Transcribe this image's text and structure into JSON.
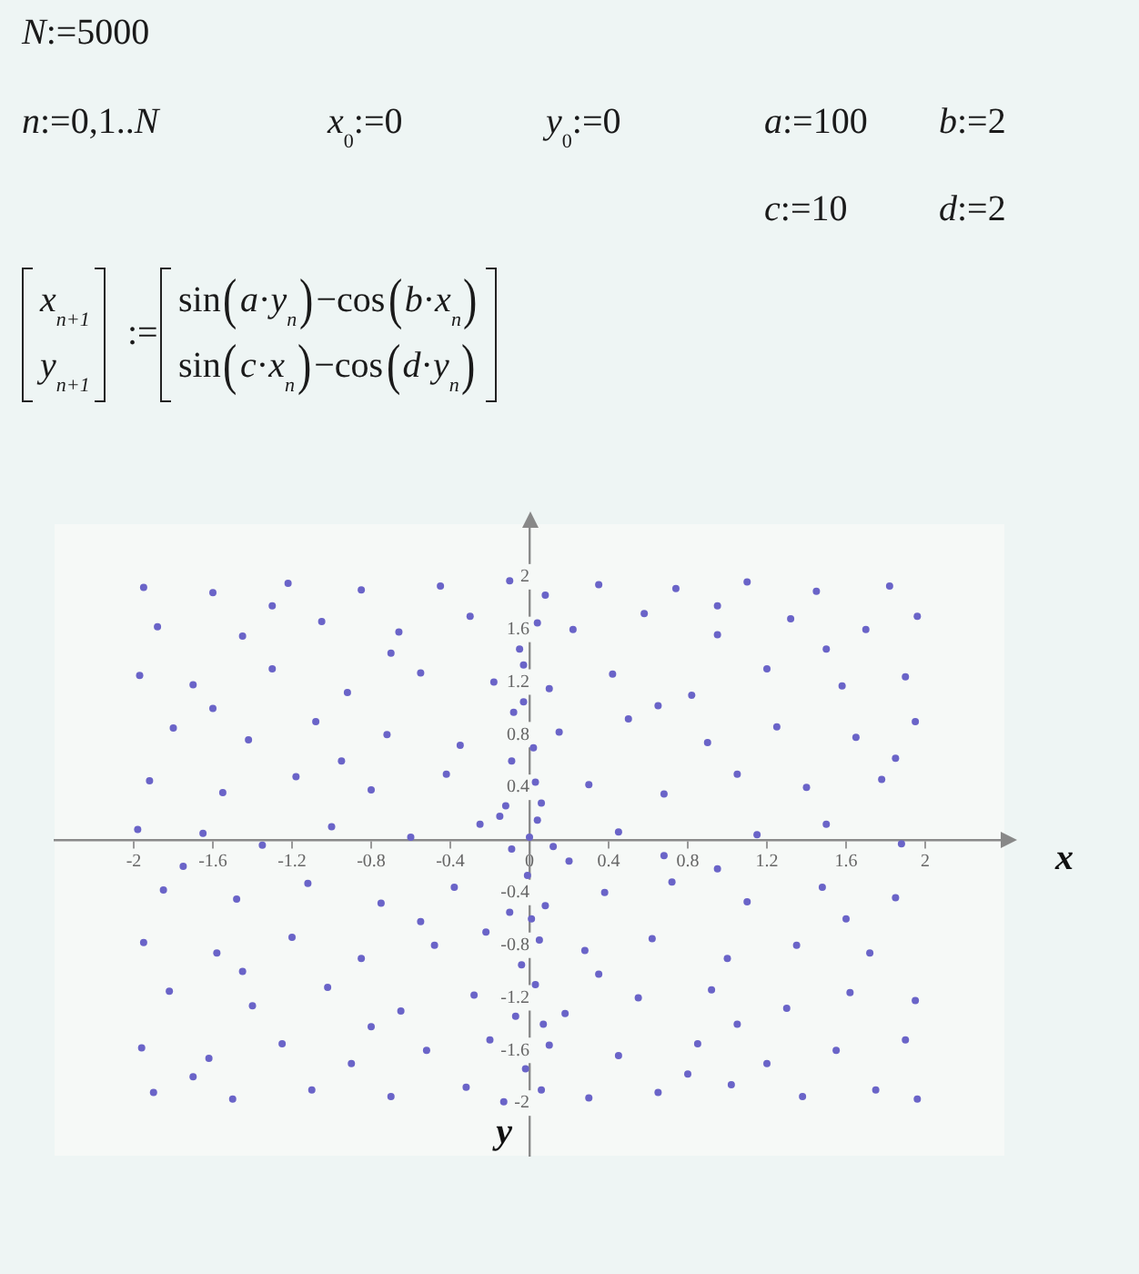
{
  "chart_data": {
    "type": "scatter",
    "annotations": [
      "N:=5000",
      "n:=0,1..N",
      "x$_{0}$:=0",
      "y$_{0}$:=0",
      "a:=100",
      "b:=2",
      "c:=10",
      "d:=2",
      "x$_{n+1}$",
      "y$_{n+1}$",
      ":=",
      "sin(a·y$_{n}$)−cos(b·x$_{n}$)",
      "sin(c·x$_{n}$)−cos(d·y$_{n}$)"
    ],
    "xlabel": "x",
    "ylabel": "y",
    "x": [
      -1.95,
      -1.6,
      -1.22,
      -0.85,
      -0.45,
      -0.1,
      0.08,
      0.35,
      0.74,
      1.1,
      1.45,
      1.82,
      -1.88,
      -1.45,
      -1.05,
      -0.66,
      -0.3,
      -0.05,
      0.04,
      0.22,
      0.58,
      0.95,
      1.32,
      1.7,
      1.96,
      -1.97,
      -1.7,
      -1.3,
      -0.92,
      -0.55,
      -0.18,
      -0.03,
      0.1,
      0.42,
      0.82,
      1.2,
      1.58,
      1.9,
      -1.8,
      -1.42,
      -1.08,
      -0.72,
      -0.35,
      -0.08,
      0.02,
      0.15,
      0.5,
      0.9,
      1.25,
      1.65,
      1.95,
      -1.92,
      -1.55,
      -1.18,
      -0.8,
      -0.42,
      -0.12,
      0.03,
      0.06,
      0.3,
      0.68,
      1.05,
      1.4,
      1.78,
      -1.98,
      -1.65,
      -1.35,
      -1.0,
      -0.6,
      -0.25,
      -0.09,
      0.0,
      0.04,
      0.12,
      0.45,
      0.68,
      1.15,
      1.5,
      1.88,
      -0.15,
      0.2,
      -1.85,
      -1.48,
      -1.12,
      -0.75,
      -0.38,
      -0.1,
      -0.01,
      0.08,
      0.38,
      0.72,
      1.1,
      1.48,
      1.85,
      -1.95,
      -1.58,
      -1.2,
      -0.85,
      -0.48,
      -0.22,
      -0.04,
      0.05,
      0.28,
      0.62,
      1.0,
      1.35,
      1.72,
      -1.82,
      -1.4,
      -1.02,
      -0.65,
      -0.28,
      -0.07,
      0.03,
      0.18,
      0.55,
      0.92,
      1.3,
      1.62,
      1.95,
      -1.96,
      -1.62,
      -1.25,
      -0.9,
      -0.52,
      -0.2,
      -0.02,
      0.1,
      0.45,
      0.85,
      1.2,
      1.55,
      1.9,
      -1.9,
      -1.5,
      -1.1,
      -0.7,
      -0.32,
      -0.13,
      0.06,
      0.3,
      0.65,
      1.02,
      1.38,
      1.75,
      1.96,
      -1.3,
      0.95,
      -0.7,
      1.5,
      -1.6,
      0.65,
      -0.95,
      1.85,
      -1.75,
      0.95,
      -0.55,
      1.6,
      -1.45,
      0.35,
      -0.8,
      1.05,
      -1.7,
      0.8,
      -0.03,
      0.01,
      -0.09,
      0.07
    ],
    "values": [
      1.92,
      1.88,
      1.95,
      1.9,
      1.93,
      1.97,
      1.86,
      1.94,
      1.91,
      1.96,
      1.89,
      1.93,
      1.62,
      1.55,
      1.66,
      1.58,
      1.7,
      1.45,
      1.65,
      1.6,
      1.72,
      1.56,
      1.68,
      1.6,
      1.7,
      1.25,
      1.18,
      1.3,
      1.12,
      1.27,
      1.2,
      1.33,
      1.15,
      1.26,
      1.1,
      1.3,
      1.17,
      1.24,
      0.85,
      0.76,
      0.9,
      0.8,
      0.72,
      0.97,
      0.7,
      0.82,
      0.92,
      0.74,
      0.86,
      0.78,
      0.9,
      0.45,
      0.36,
      0.48,
      0.38,
      0.5,
      0.26,
      0.44,
      0.28,
      0.42,
      0.35,
      0.5,
      0.4,
      0.46,
      0.08,
      0.05,
      -0.04,
      0.1,
      0.02,
      0.12,
      -0.07,
      0.02,
      0.15,
      -0.05,
      0.06,
      -0.12,
      0.04,
      0.12,
      -0.03,
      0.18,
      -0.16,
      -0.38,
      -0.45,
      -0.33,
      -0.48,
      -0.36,
      -0.55,
      -0.27,
      -0.5,
      -0.4,
      -0.32,
      -0.47,
      -0.36,
      -0.44,
      -0.78,
      -0.86,
      -0.74,
      -0.9,
      -0.8,
      -0.7,
      -0.95,
      -0.76,
      -0.84,
      -0.75,
      -0.9,
      -0.8,
      -0.86,
      -1.15,
      -1.26,
      -1.12,
      -1.3,
      -1.18,
      -1.34,
      -1.1,
      -1.32,
      -1.2,
      -1.14,
      -1.28,
      -1.16,
      -1.22,
      -1.58,
      -1.66,
      -1.55,
      -1.7,
      -1.6,
      -1.52,
      -1.74,
      -1.56,
      -1.64,
      -1.55,
      -1.7,
      -1.6,
      -1.52,
      -1.92,
      -1.97,
      -1.9,
      -1.95,
      -1.88,
      -1.99,
      -1.9,
      -1.96,
      -1.92,
      -1.86,
      -1.95,
      -1.9,
      -1.97,
      1.78,
      1.78,
      1.42,
      1.45,
      1.0,
      1.02,
      0.6,
      0.62,
      -0.2,
      -0.22,
      -0.62,
      -0.6,
      -1.0,
      -1.02,
      -1.42,
      -1.4,
      -1.8,
      -1.78,
      1.05,
      -0.6,
      0.6,
      -1.4
    ],
    "color": "#6a64c8",
    "marker": "circle",
    "xlim": [
      -2.4,
      2.4
    ],
    "ylim": [
      -2.4,
      2.4
    ],
    "xticks": [
      -2,
      -1.6,
      -1.2,
      -0.8,
      -0.4,
      0,
      0.4,
      0.8,
      1.2,
      1.6,
      2
    ],
    "yticks": [
      -2,
      -1.6,
      -1.2,
      -0.8,
      -0.4,
      0.4,
      0.8,
      1.2,
      1.6,
      2
    ]
  }
}
